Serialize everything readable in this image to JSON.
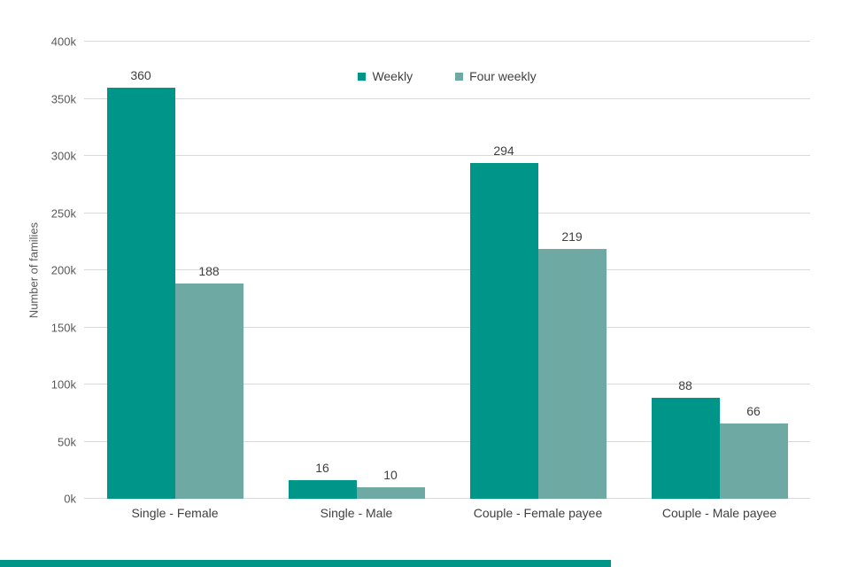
{
  "chart_data": {
    "type": "bar",
    "title": "",
    "ylabel": "Number of families",
    "categories": [
      "Single - Female",
      "Single - Male",
      "Couple - Female payee",
      "Couple - Male payee"
    ],
    "series": [
      {
        "name": "Weekly",
        "color": "#009589",
        "values": [
          360,
          16,
          294,
          88
        ]
      },
      {
        "name": "Four weekly",
        "color": "#6FA9A3",
        "values": [
          188,
          10,
          219,
          66
        ]
      }
    ],
    "value_unit": "thousands",
    "ylim": [
      0,
      400
    ],
    "ytick_step": 50,
    "ytick_labels": [
      "0k",
      "50k",
      "100k",
      "150k",
      "200k",
      "250k",
      "300k",
      "350k",
      "400k"
    ],
    "grid": "horizontal",
    "legend_position": "top-center"
  },
  "footer": {
    "accent_color": "#009589"
  }
}
